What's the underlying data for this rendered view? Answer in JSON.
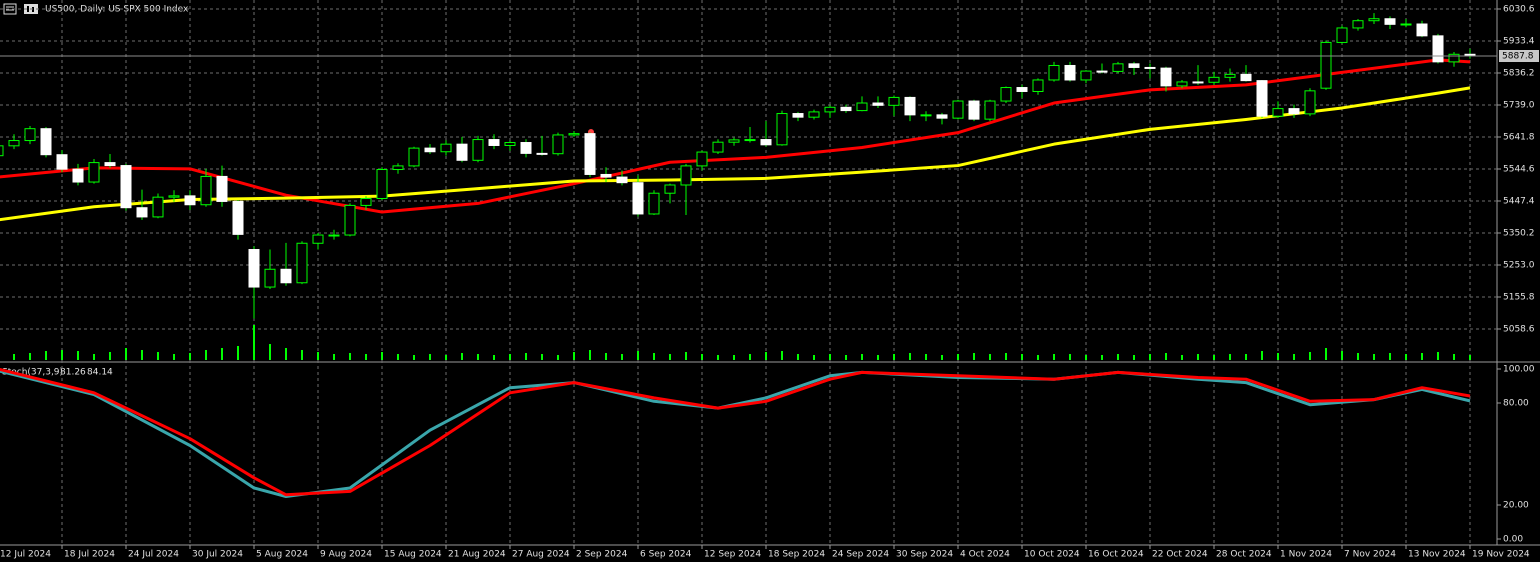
{
  "chart_data": [
    {
      "type": "candlestick",
      "title": "US500, Daily: US SPX 500 Index",
      "categories": [
        "12 Jul 2024",
        null,
        null,
        null,
        "18 Jul 2024",
        null,
        null,
        null,
        "24 Jul 2024",
        null,
        null,
        null,
        "30 Jul 2024",
        null,
        null,
        null,
        "5 Aug 2024",
        null,
        null,
        null,
        "9 Aug 2024",
        null,
        null,
        null,
        "15 Aug 2024",
        null,
        null,
        null,
        "21 Aug 2024",
        null,
        null,
        null,
        "27 Aug 2024",
        null,
        null,
        null,
        "2 Sep 2024",
        null,
        null,
        null,
        "6 Sep 2024",
        null,
        null,
        null,
        "12 Sep 2024",
        null,
        null,
        null,
        "18 Sep 2024",
        null,
        null,
        null,
        "24 Sep 2024",
        null,
        null,
        null,
        "30 Sep 2024",
        null,
        null,
        null,
        "4 Oct 2024",
        null,
        null,
        null,
        "10 Oct 2024",
        null,
        null,
        null,
        "16 Oct 2024",
        null,
        null,
        null,
        "22 Oct 2024",
        null,
        null,
        null,
        "28 Oct 2024",
        null,
        null,
        null,
        "1 Nov 2024",
        null,
        null,
        null,
        "7 Nov 2024",
        null,
        null,
        null,
        "13 Nov 2024",
        null,
        null,
        null,
        "19 Nov 2024"
      ],
      "open": [
        5585,
        5615,
        5631,
        5667,
        5588,
        5544,
        5505,
        5564,
        5555,
        5427,
        5399,
        5459,
        5463,
        5436,
        5522,
        5446,
        5300,
        5186,
        5240,
        5199,
        5319,
        5344,
        5344,
        5434,
        5455,
        5543,
        5554,
        5608,
        5597,
        5620,
        5571,
        5634,
        5616,
        5625,
        5592,
        5591,
        5648,
        5652,
        5528,
        5520,
        5503,
        5408,
        5471,
        5496,
        5554,
        5596,
        5626,
        5633,
        5634,
        5618,
        5713,
        5702,
        5718,
        5732,
        5722,
        5745,
        5738,
        5762,
        5709,
        5709,
        5699,
        5751,
        5696,
        5751,
        5792,
        5780,
        5815,
        5859,
        5815,
        5842,
        5841,
        5864,
        5853,
        5851,
        5797,
        5809,
        5808,
        5823,
        5832,
        5813,
        5705,
        5728,
        5712,
        5790,
        5929,
        5973,
        5995,
        6001,
        5984,
        5985,
        5949,
        5870,
        5893
      ],
      "high": [
        5625,
        5650,
        5675,
        5672,
        5602,
        5560,
        5575,
        5590,
        5560,
        5482,
        5470,
        5480,
        5480,
        5545,
        5555,
        5450,
        5310,
        5300,
        5320,
        5325,
        5350,
        5360,
        5440,
        5462,
        5550,
        5562,
        5612,
        5620,
        5632,
        5642,
        5645,
        5650,
        5630,
        5635,
        5645,
        5655,
        5660,
        5656,
        5550,
        5540,
        5525,
        5480,
        5500,
        5560,
        5600,
        5635,
        5640,
        5672,
        5690,
        5722,
        5718,
        5725,
        5738,
        5740,
        5765,
        5765,
        5768,
        5765,
        5720,
        5715,
        5755,
        5755,
        5755,
        5795,
        5800,
        5820,
        5870,
        5870,
        5845,
        5865,
        5870,
        5870,
        5865,
        5855,
        5815,
        5860,
        5840,
        5850,
        5860,
        5815,
        5750,
        5740,
        5790,
        5935,
        5980,
        6000,
        6018,
        6008,
        6000,
        5995,
        5955,
        5900,
        5910
      ],
      "low": [
        5578,
        5605,
        5620,
        5580,
        5535,
        5495,
        5500,
        5548,
        5418,
        5390,
        5395,
        5445,
        5420,
        5430,
        5430,
        5330,
        5090,
        5180,
        5190,
        5195,
        5300,
        5330,
        5340,
        5420,
        5450,
        5530,
        5550,
        5590,
        5585,
        5565,
        5565,
        5605,
        5600,
        5580,
        5585,
        5585,
        5642,
        5520,
        5505,
        5495,
        5400,
        5405,
        5440,
        5405,
        5540,
        5590,
        5615,
        5625,
        5612,
        5615,
        5690,
        5695,
        5700,
        5715,
        5720,
        5730,
        5705,
        5690,
        5690,
        5680,
        5695,
        5690,
        5690,
        5745,
        5760,
        5770,
        5810,
        5810,
        5805,
        5835,
        5835,
        5830,
        5820,
        5780,
        5790,
        5800,
        5800,
        5810,
        5810,
        5700,
        5700,
        5700,
        5705,
        5785,
        5925,
        5965,
        5985,
        5970,
        5975,
        5945,
        5865,
        5855,
        5880
      ],
      "close": [
        5615,
        5631,
        5667,
        5588,
        5544,
        5505,
        5564,
        5555,
        5427,
        5399,
        5459,
        5463,
        5436,
        5522,
        5446,
        5346,
        5186,
        5240,
        5199,
        5319,
        5344,
        5344,
        5434,
        5455,
        5543,
        5554,
        5608,
        5597,
        5620,
        5571,
        5634,
        5616,
        5625,
        5592,
        5591,
        5648,
        5652,
        5528,
        5520,
        5503,
        5408,
        5471,
        5496,
        5554,
        5596,
        5626,
        5633,
        5634,
        5618,
        5713,
        5702,
        5718,
        5732,
        5722,
        5745,
        5738,
        5762,
        5709,
        5709,
        5699,
        5751,
        5696,
        5751,
        5792,
        5780,
        5815,
        5859,
        5815,
        5842,
        5841,
        5864,
        5853,
        5851,
        5797,
        5809,
        5808,
        5823,
        5832,
        5813,
        5705,
        5728,
        5712,
        5782,
        5929,
        5973,
        5995,
        6001,
        5984,
        5985,
        5949,
        5870,
        5893,
        5887.8
      ],
      "volume": [
        8,
        6,
        7,
        9,
        10,
        9,
        6,
        8,
        12,
        10,
        8,
        6,
        7,
        10,
        12,
        14,
        35,
        16,
        12,
        10,
        8,
        6,
        7,
        6,
        8,
        6,
        5,
        6,
        5,
        7,
        6,
        5,
        6,
        7,
        6,
        5,
        8,
        10,
        7,
        6,
        9,
        7,
        6,
        8,
        6,
        5,
        5,
        6,
        8,
        9,
        6,
        5,
        6,
        5,
        6,
        5,
        6,
        7,
        6,
        5,
        6,
        7,
        6,
        7,
        6,
        5,
        6,
        6,
        5,
        5,
        6,
        5,
        6,
        7,
        5,
        6,
        5,
        6,
        6,
        9,
        7,
        6,
        8,
        12,
        9,
        7,
        6,
        7,
        6,
        7,
        8,
        6,
        5
      ],
      "up_color": "#00ff00",
      "down_color": "#00ff00",
      "volume_color": "#00ff00",
      "overlays": [
        {
          "color": "#ff0000",
          "x": [
            0,
            6,
            12,
            18,
            24,
            30,
            36,
            42,
            48,
            54,
            60,
            66,
            72,
            78,
            84,
            90,
            92
          ],
          "values": [
            5520,
            5548,
            5545,
            5465,
            5414,
            5440,
            5500,
            5565,
            5580,
            5610,
            5655,
            5745,
            5785,
            5800,
            5838,
            5876,
            5870
          ]
        },
        {
          "color": "#ffff00",
          "x": [
            0,
            6,
            12,
            18,
            24,
            30,
            36,
            42,
            48,
            54,
            60,
            66,
            72,
            78,
            84,
            90,
            92
          ],
          "values": [
            5390,
            5430,
            5452,
            5456,
            5462,
            5485,
            5508,
            5511,
            5516,
            5535,
            5555,
            5620,
            5665,
            5695,
            5730,
            5775,
            5791
          ]
        }
      ],
      "ylim": [
        4964.4,
        6057.9
      ],
      "yticks": [
        6030.6,
        5933.4,
        5836.2,
        {
          "value": 5739,
          "label": "5739.0"
        },
        5641.8,
        5544.6,
        5447.4,
        5350.2,
        {
          "value": 5253,
          "label": "5253.0"
        },
        5155.8,
        5058.6
      ],
      "grid": true
    },
    {
      "type": "line",
      "title": "Stoch(37,3,9)",
      "x": [
        0,
        6,
        12,
        16,
        18,
        22,
        27,
        32,
        36,
        41,
        45,
        48,
        52,
        54,
        60,
        66,
        70,
        75,
        78,
        82,
        86,
        89,
        92
      ],
      "series": [
        {
          "color": "#3aa6ab",
          "values": [
            99,
            85,
            55,
            30,
            25,
            30,
            64,
            89,
            92,
            81,
            77,
            83,
            96,
            98,
            95,
            94,
            98,
            94,
            92,
            79,
            82,
            88,
            81.26
          ]
        },
        {
          "color": "#ff0000",
          "values": [
            100,
            86,
            59,
            36,
            26,
            28,
            55,
            86,
            92,
            83,
            77,
            81,
            94,
            98,
            96,
            94,
            98,
            95,
            94,
            81,
            82,
            89,
            84.14
          ]
        }
      ],
      "ylim": [
        0,
        100
      ],
      "yticks": [
        {
          "value": 100,
          "label": "100.00"
        },
        {
          "value": 80,
          "label": "80.00"
        },
        {
          "value": 20,
          "label": "20.00"
        },
        {
          "value": 0,
          "label": "0.00"
        }
      ]
    }
  ]
}
